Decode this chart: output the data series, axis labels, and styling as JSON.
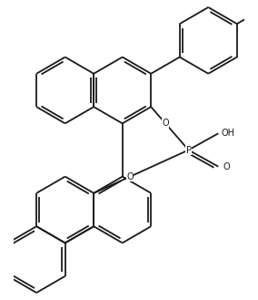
{
  "bg_color": "#ffffff",
  "line_color": "#1a1a1a",
  "lw": 1.3,
  "fig_width": 2.84,
  "fig_height": 3.29,
  "dpi": 100,
  "font_size": 7.0,
  "xlim": [
    -3.8,
    3.2
  ],
  "ylim": [
    -4.5,
    4.5
  ]
}
